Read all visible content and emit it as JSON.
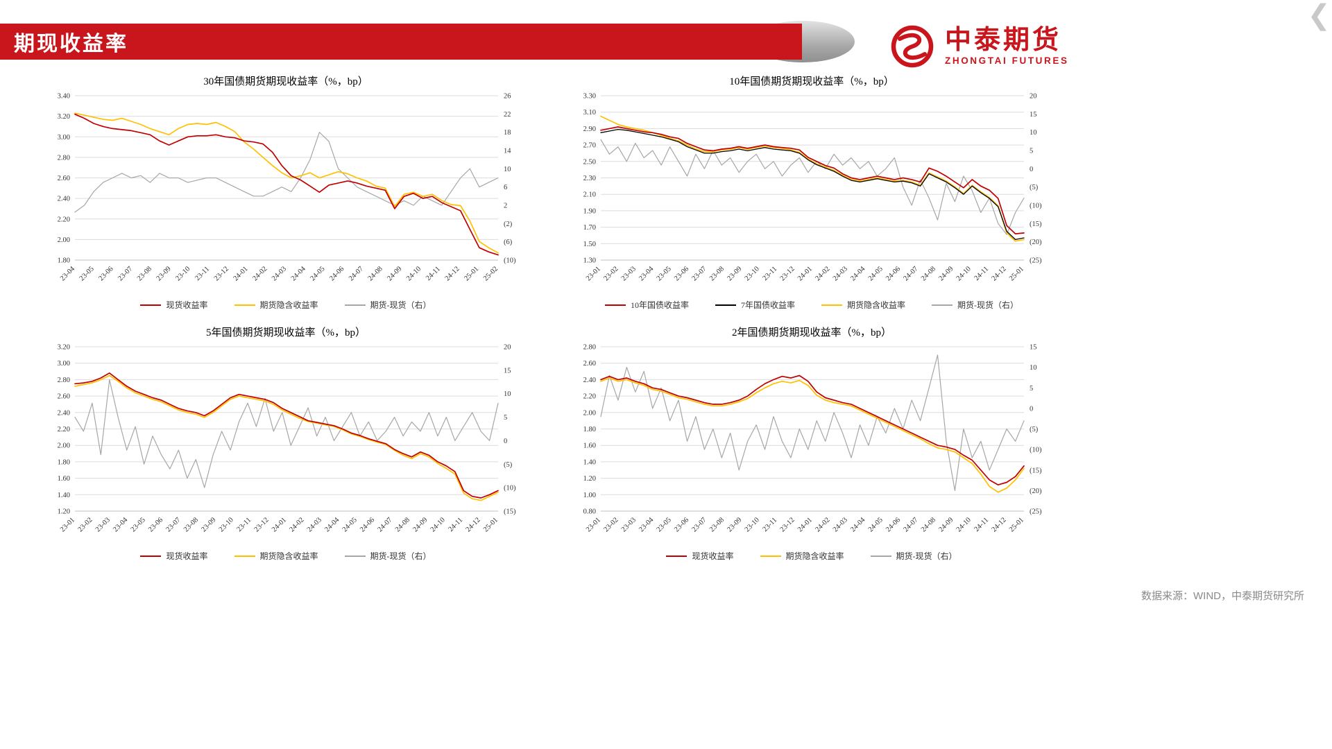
{
  "header": {
    "title": "期现收益率",
    "logo": {
      "title": "中泰期货",
      "subtitle": "ZHONGTAI FUTURES"
    }
  },
  "footer": {
    "source": "数据来源：WIND，中泰期货研究所"
  },
  "colors": {
    "accent_red": "#C9161D",
    "series_red": "#C00000",
    "series_yellow": "#FFC000",
    "series_gray": "#A6A6A6",
    "series_black": "#000000",
    "negative_tick": "#FF0000",
    "grid": "#DCDCDC",
    "axis_text": "#333333"
  },
  "chart_data": [
    {
      "type": "line",
      "title": "30年国债期货期现收益率（%，bp）",
      "x_labels": [
        "23-04",
        "23-05",
        "23-06",
        "23-07",
        "23-08",
        "23-09",
        "23-10",
        "23-11",
        "23-12",
        "24-01",
        "24-02",
        "24-03",
        "24-04",
        "24-05",
        "24-06",
        "24-07",
        "24-08",
        "24-09",
        "24-10",
        "24-11",
        "24-12",
        "25-01",
        "25-02"
      ],
      "left_axis": {
        "min": 1.8,
        "max": 3.4,
        "ticks": [
          "3.40",
          "3.20",
          "3.00",
          "2.80",
          "2.60",
          "2.40",
          "2.20",
          "2.00",
          "1.80"
        ]
      },
      "right_axis": {
        "min": -10,
        "max": 26,
        "ticks": [
          "26",
          "22",
          "18",
          "14",
          "10",
          "6",
          "2",
          "(2)",
          "(6)",
          "(10)"
        ]
      },
      "series": [
        {
          "name": "现货收益率",
          "color": "#C00000",
          "axis": "left",
          "width": 1.7,
          "values": [
            3.22,
            3.18,
            3.13,
            3.1,
            3.08,
            3.07,
            3.06,
            3.04,
            3.02,
            2.96,
            2.92,
            2.96,
            3.0,
            3.01,
            3.01,
            3.02,
            3.0,
            2.99,
            2.96,
            2.95,
            2.93,
            2.85,
            2.72,
            2.62,
            2.58,
            2.52,
            2.46,
            2.53,
            2.55,
            2.57,
            2.55,
            2.52,
            2.5,
            2.48,
            2.3,
            2.42,
            2.45,
            2.4,
            2.42,
            2.36,
            2.32,
            2.28,
            2.1,
            1.92,
            1.88,
            1.85
          ]
        },
        {
          "name": "期货隐含收益率",
          "color": "#FFC000",
          "axis": "left",
          "width": 1.7,
          "values": [
            3.23,
            3.21,
            3.19,
            3.17,
            3.16,
            3.18,
            3.15,
            3.12,
            3.08,
            3.05,
            3.02,
            3.08,
            3.12,
            3.13,
            3.12,
            3.14,
            3.1,
            3.05,
            2.95,
            2.88,
            2.8,
            2.72,
            2.65,
            2.6,
            2.62,
            2.65,
            2.6,
            2.63,
            2.66,
            2.64,
            2.6,
            2.57,
            2.52,
            2.5,
            2.32,
            2.44,
            2.46,
            2.42,
            2.44,
            2.38,
            2.34,
            2.33,
            2.18,
            1.98,
            1.92,
            1.87
          ]
        },
        {
          "name": "期货-现货（右）",
          "color": "#A6A6A6",
          "axis": "right",
          "width": 1.2,
          "values": [
            0.5,
            2,
            5,
            7,
            8,
            9,
            8,
            8.5,
            7,
            9,
            8,
            8,
            7,
            7.5,
            8,
            8,
            7,
            6,
            5,
            4,
            4,
            5,
            6,
            5,
            8,
            12,
            18,
            16,
            10,
            8,
            6,
            5,
            4,
            3,
            2,
            3,
            2,
            4,
            3,
            2,
            5,
            8,
            10,
            6,
            7,
            8
          ]
        }
      ]
    },
    {
      "type": "line",
      "title": "10年国债期货期现收益率（%，bp）",
      "x_labels": [
        "23-01",
        "23-02",
        "23-03",
        "23-04",
        "23-05",
        "23-06",
        "23-07",
        "23-08",
        "23-09",
        "23-10",
        "23-11",
        "23-12",
        "24-01",
        "24-02",
        "24-03",
        "24-04",
        "24-05",
        "24-06",
        "24-07",
        "24-08",
        "24-09",
        "24-10",
        "24-11",
        "24-12",
        "25-01"
      ],
      "left_axis": {
        "min": 1.3,
        "max": 3.3,
        "ticks": [
          "3.30",
          "3.10",
          "2.90",
          "2.70",
          "2.50",
          "2.30",
          "2.10",
          "1.90",
          "1.70",
          "1.50",
          "1.30"
        ]
      },
      "right_axis": {
        "min": -25,
        "max": 20,
        "ticks": [
          "20",
          "15",
          "10",
          "5",
          "0",
          "(5)",
          "(10)",
          "(15)",
          "(20)",
          "(25)"
        ]
      },
      "series": [
        {
          "name": "10年国债收益率",
          "color": "#C00000",
          "axis": "left",
          "width": 1.7,
          "values": [
            2.88,
            2.9,
            2.92,
            2.9,
            2.88,
            2.86,
            2.85,
            2.83,
            2.8,
            2.78,
            2.72,
            2.68,
            2.64,
            2.63,
            2.65,
            2.66,
            2.68,
            2.66,
            2.68,
            2.7,
            2.68,
            2.67,
            2.66,
            2.64,
            2.55,
            2.5,
            2.45,
            2.42,
            2.35,
            2.3,
            2.28,
            2.3,
            2.32,
            2.3,
            2.28,
            2.3,
            2.28,
            2.25,
            2.42,
            2.38,
            2.32,
            2.25,
            2.18,
            2.28,
            2.2,
            2.15,
            2.05,
            1.72,
            1.62,
            1.63
          ]
        },
        {
          "name": "7年国债收益率",
          "color": "#000000",
          "axis": "left",
          "width": 1.3,
          "values": [
            2.85,
            2.87,
            2.89,
            2.88,
            2.86,
            2.84,
            2.82,
            2.8,
            2.77,
            2.74,
            2.68,
            2.64,
            2.6,
            2.6,
            2.62,
            2.63,
            2.65,
            2.63,
            2.65,
            2.67,
            2.65,
            2.64,
            2.63,
            2.6,
            2.52,
            2.46,
            2.42,
            2.38,
            2.32,
            2.27,
            2.25,
            2.27,
            2.29,
            2.27,
            2.25,
            2.26,
            2.24,
            2.2,
            2.35,
            2.3,
            2.25,
            2.18,
            2.1,
            2.2,
            2.12,
            2.05,
            1.95,
            1.65,
            1.55,
            1.57
          ]
        },
        {
          "name": "期货隐含收益率",
          "color": "#FFC000",
          "axis": "left",
          "width": 1.7,
          "values": [
            3.05,
            3.0,
            2.95,
            2.92,
            2.9,
            2.88,
            2.85,
            2.82,
            2.78,
            2.75,
            2.7,
            2.65,
            2.62,
            2.62,
            2.64,
            2.65,
            2.67,
            2.65,
            2.67,
            2.69,
            2.67,
            2.66,
            2.64,
            2.61,
            2.53,
            2.47,
            2.43,
            2.39,
            2.33,
            2.28,
            2.26,
            2.28,
            2.3,
            2.28,
            2.26,
            2.27,
            2.25,
            2.21,
            2.36,
            2.31,
            2.26,
            2.19,
            2.11,
            2.21,
            2.13,
            2.06,
            1.96,
            1.63,
            1.53,
            1.55
          ]
        },
        {
          "name": "期货-现货（右）",
          "color": "#A6A6A6",
          "axis": "right",
          "width": 1.2,
          "values": [
            8,
            4,
            6,
            2,
            7,
            3,
            5,
            1,
            6,
            2,
            -2,
            4,
            0,
            5,
            1,
            3,
            -1,
            2,
            4,
            0,
            2,
            -2,
            1,
            3,
            -1,
            2,
            0,
            4,
            1,
            3,
            0,
            2,
            -2,
            0,
            3,
            -5,
            -10,
            -3,
            -8,
            -14,
            -4,
            -9,
            -2,
            -6,
            -12,
            -8,
            -15,
            -18,
            -12,
            -8
          ]
        }
      ]
    },
    {
      "type": "line",
      "title": "5年国债期货期现收益率（%，bp）",
      "x_labels": [
        "23-01",
        "23-02",
        "23-03",
        "23-04",
        "23-05",
        "23-06",
        "23-07",
        "23-08",
        "23-09",
        "23-10",
        "23-11",
        "23-12",
        "24-01",
        "24-02",
        "24-03",
        "24-04",
        "24-05",
        "24-06",
        "24-07",
        "24-08",
        "24-09",
        "24-10",
        "24-11",
        "24-12",
        "25-01"
      ],
      "left_axis": {
        "min": 1.2,
        "max": 3.2,
        "ticks": [
          "3.20",
          "3.00",
          "2.80",
          "2.60",
          "2.40",
          "2.20",
          "2.00",
          "1.80",
          "1.60",
          "1.40",
          "1.20"
        ]
      },
      "right_axis": {
        "min": -15,
        "max": 20,
        "ticks": [
          "20",
          "15",
          "10",
          "5",
          "0",
          "(5)",
          "(10)",
          "(15)"
        ]
      },
      "series": [
        {
          "name": "现货收益率",
          "color": "#C00000",
          "axis": "left",
          "width": 1.7,
          "values": [
            2.75,
            2.76,
            2.78,
            2.82,
            2.88,
            2.8,
            2.72,
            2.66,
            2.62,
            2.58,
            2.55,
            2.5,
            2.45,
            2.42,
            2.4,
            2.36,
            2.42,
            2.5,
            2.58,
            2.62,
            2.6,
            2.58,
            2.56,
            2.52,
            2.45,
            2.4,
            2.35,
            2.3,
            2.28,
            2.26,
            2.24,
            2.2,
            2.15,
            2.12,
            2.08,
            2.05,
            2.02,
            1.95,
            1.9,
            1.86,
            1.92,
            1.88,
            1.8,
            1.75,
            1.68,
            1.45,
            1.38,
            1.36,
            1.4,
            1.45
          ]
        },
        {
          "name": "期货隐含收益率",
          "color": "#FFC000",
          "axis": "left",
          "width": 1.7,
          "values": [
            2.72,
            2.74,
            2.76,
            2.8,
            2.85,
            2.78,
            2.7,
            2.64,
            2.6,
            2.56,
            2.53,
            2.48,
            2.43,
            2.4,
            2.38,
            2.34,
            2.4,
            2.48,
            2.56,
            2.6,
            2.58,
            2.56,
            2.54,
            2.5,
            2.43,
            2.38,
            2.33,
            2.29,
            2.27,
            2.25,
            2.23,
            2.19,
            2.14,
            2.11,
            2.07,
            2.04,
            2.01,
            1.94,
            1.88,
            1.84,
            1.9,
            1.86,
            1.78,
            1.72,
            1.65,
            1.42,
            1.35,
            1.33,
            1.38,
            1.43
          ]
        },
        {
          "name": "期货-现货（右）",
          "color": "#A6A6A6",
          "axis": "right",
          "width": 1.2,
          "values": [
            5,
            2,
            8,
            -3,
            13,
            5,
            -2,
            3,
            -5,
            1,
            -3,
            -6,
            -2,
            -8,
            -4,
            -10,
            -3,
            2,
            -2,
            4,
            8,
            3,
            9,
            2,
            6,
            -1,
            3,
            7,
            1,
            5,
            0,
            3,
            6,
            1,
            4,
            0,
            2,
            5,
            1,
            4,
            2,
            6,
            1,
            5,
            0,
            3,
            6,
            2,
            0,
            8
          ]
        }
      ]
    },
    {
      "type": "line",
      "title": "2年国债期货期现收益率（%，bp）",
      "x_labels": [
        "23-01",
        "23-02",
        "23-03",
        "23-04",
        "23-05",
        "23-06",
        "23-07",
        "23-08",
        "23-09",
        "23-10",
        "23-11",
        "23-12",
        "24-01",
        "24-02",
        "24-03",
        "24-04",
        "24-05",
        "24-06",
        "24-07",
        "24-08",
        "24-09",
        "24-10",
        "24-11",
        "24-12",
        "25-01"
      ],
      "left_axis": {
        "min": 0.8,
        "max": 2.8,
        "ticks": [
          "2.80",
          "2.60",
          "2.40",
          "2.20",
          "2.00",
          "1.80",
          "1.60",
          "1.40",
          "1.20",
          "1.00",
          "0.80"
        ]
      },
      "right_axis": {
        "min": -25,
        "max": 15,
        "ticks": [
          "15",
          "10",
          "5",
          "0",
          "(5)",
          "(10)",
          "(15)",
          "(20)",
          "(25)"
        ]
      },
      "series": [
        {
          "name": "现货收益率",
          "color": "#C00000",
          "axis": "left",
          "width": 1.7,
          "values": [
            2.4,
            2.44,
            2.4,
            2.42,
            2.38,
            2.35,
            2.3,
            2.28,
            2.24,
            2.2,
            2.18,
            2.15,
            2.12,
            2.1,
            2.1,
            2.12,
            2.15,
            2.2,
            2.28,
            2.35,
            2.4,
            2.44,
            2.42,
            2.45,
            2.38,
            2.25,
            2.18,
            2.15,
            2.12,
            2.1,
            2.05,
            2.0,
            1.95,
            1.9,
            1.85,
            1.8,
            1.75,
            1.7,
            1.65,
            1.6,
            1.58,
            1.55,
            1.48,
            1.42,
            1.3,
            1.18,
            1.12,
            1.15,
            1.22,
            1.35
          ]
        },
        {
          "name": "期货隐含收益率",
          "color": "#FFC000",
          "axis": "left",
          "width": 1.7,
          "values": [
            2.38,
            2.42,
            2.38,
            2.4,
            2.36,
            2.33,
            2.28,
            2.26,
            2.22,
            2.18,
            2.16,
            2.13,
            2.1,
            2.08,
            2.08,
            2.1,
            2.13,
            2.17,
            2.24,
            2.3,
            2.35,
            2.38,
            2.36,
            2.39,
            2.33,
            2.21,
            2.15,
            2.12,
            2.1,
            2.08,
            2.03,
            1.98,
            1.93,
            1.88,
            1.83,
            1.78,
            1.73,
            1.68,
            1.62,
            1.57,
            1.55,
            1.52,
            1.45,
            1.38,
            1.25,
            1.1,
            1.03,
            1.08,
            1.18,
            1.32
          ]
        },
        {
          "name": "期货-现货（右）",
          "color": "#A6A6A6",
          "axis": "right",
          "width": 1.2,
          "values": [
            -2,
            8,
            2,
            10,
            4,
            9,
            0,
            5,
            -3,
            2,
            -8,
            -2,
            -10,
            -5,
            -12,
            -6,
            -15,
            -8,
            -4,
            -10,
            -2,
            -8,
            -12,
            -5,
            -10,
            -3,
            -8,
            -1,
            -6,
            -12,
            -4,
            -9,
            -2,
            -6,
            0,
            -5,
            2,
            -3,
            5,
            13,
            -8,
            -20,
            -5,
            -12,
            -8,
            -15,
            -10,
            -5,
            -8,
            -3
          ]
        }
      ]
    }
  ]
}
